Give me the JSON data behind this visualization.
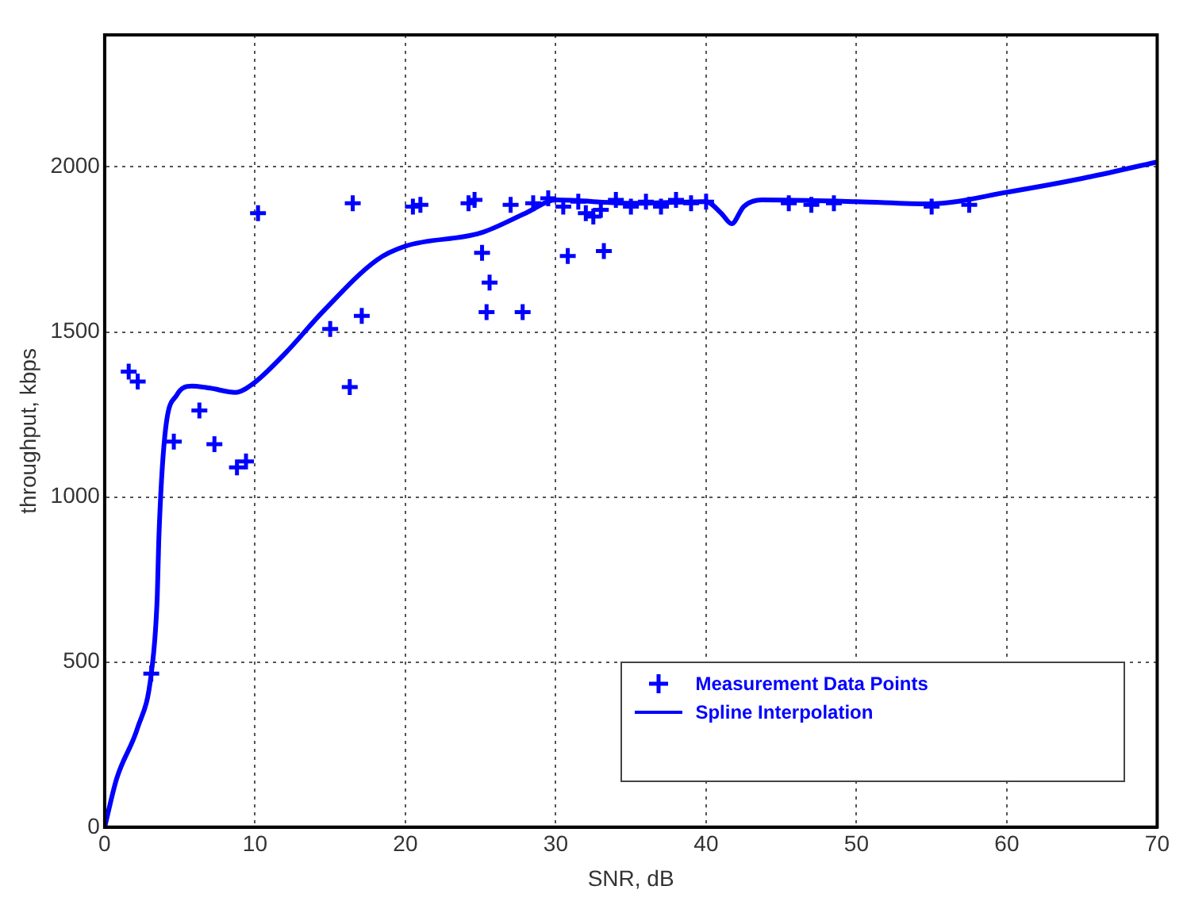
{
  "chart_data": {
    "type": "scatter",
    "xlabel": "SNR, dB",
    "ylabel": "throughput, kbps",
    "xlim": [
      0,
      70
    ],
    "xticks": [
      0,
      10,
      20,
      30,
      40,
      50,
      60,
      70
    ],
    "ylim": [
      0,
      2400
    ],
    "yticks": [
      0,
      500,
      1000,
      1500,
      2000
    ],
    "grid": true,
    "legend": "bottom right",
    "series": [
      {
        "name": "Measurement Data Points",
        "marker": "cross",
        "color": "#0000ff",
        "x": [
          1.6,
          2.2,
          3.1,
          4.6,
          6.3,
          7.3,
          8.8,
          9.4,
          10.2,
          15.0,
          16.3,
          16.5,
          17.1,
          20.5,
          21,
          24.2,
          24.6,
          25.1,
          25.4,
          25.6,
          27,
          27.8,
          28.5,
          29.5,
          30.5,
          30.8,
          31.5,
          32,
          32.5,
          33,
          33.2,
          34,
          35,
          36,
          37,
          38,
          39,
          40,
          45.5,
          47,
          48.5,
          55,
          57.5
        ],
        "values": [
          1380,
          1350,
          465,
          1168,
          1262,
          1160,
          1090,
          1108,
          1860,
          1509,
          1333,
          1890,
          1549,
          1880,
          1885,
          1890,
          1900,
          1740,
          1560,
          1650,
          1885,
          1560,
          1890,
          1905,
          1880,
          1730,
          1895,
          1860,
          1850,
          1870,
          1745,
          1900,
          1880,
          1895,
          1880,
          1900,
          1890,
          1895,
          1890,
          1885,
          1890,
          1880,
          1885
        ]
      },
      {
        "name": "Spline Interpolation",
        "type": "line",
        "marker": "none",
        "line_style": "solid",
        "color": "#0000ff",
        "x": [
          0,
          0.8,
          2.2,
          3.1,
          3.5,
          3.6,
          4.0,
          4.8,
          5.8,
          7,
          8.7,
          9.8,
          12,
          14.5,
          18.1,
          20,
          25,
          28,
          30,
          35,
          40,
          41,
          41.7,
          42.5,
          43.7,
          50,
          54.8,
          60.2,
          65,
          70
        ],
        "values": [
          0,
          147,
          302,
          465,
          700,
          869,
          1184,
          1309,
          1336,
          1330,
          1317,
          1341,
          1435,
          1561,
          1718,
          1760,
          1800,
          1860,
          1900,
          1890,
          1895,
          1860,
          1828,
          1880,
          1900,
          1895,
          1888,
          1925,
          1965,
          2015
        ]
      }
    ]
  }
}
